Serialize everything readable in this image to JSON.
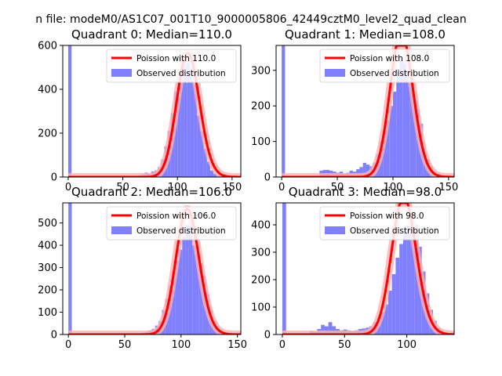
{
  "suptitle": "n file: modeM0/AS1C07_001T10_9000005806_42449cztM0_level2_quad_clean",
  "colors": {
    "hist": "#8080ff",
    "fit": "#ff0000",
    "fitHalo": "#ffb0b0",
    "axis": "#000000"
  },
  "chart_data": [
    {
      "type": "bar",
      "title": "Quadrant 0: Median=110.0",
      "median": 110.0,
      "legend": {
        "placement": "top-right",
        "fit_label": "Poission with 110.0",
        "hist_label": "Observed distribution"
      },
      "xlim": [
        -5,
        158
      ],
      "ylim": [
        0,
        600
      ],
      "xticks": [
        0,
        50,
        100,
        150
      ],
      "yticks": [
        0,
        200,
        400,
        600
      ],
      "bin_width": 3,
      "bins": [
        [
          0,
          600
        ],
        [
          61,
          4
        ],
        [
          64,
          8
        ],
        [
          67,
          12
        ],
        [
          70,
          20
        ],
        [
          73,
          15
        ],
        [
          76,
          25
        ],
        [
          79,
          30
        ],
        [
          82,
          45
        ],
        [
          85,
          80
        ],
        [
          88,
          140
        ],
        [
          91,
          210
        ],
        [
          94,
          290
        ],
        [
          97,
          390
        ],
        [
          100,
          470
        ],
        [
          103,
          500
        ],
        [
          106,
          560
        ],
        [
          109,
          520
        ],
        [
          112,
          470
        ],
        [
          115,
          420
        ],
        [
          118,
          280
        ],
        [
          121,
          210
        ],
        [
          124,
          130
        ],
        [
          127,
          70
        ],
        [
          130,
          30
        ],
        [
          133,
          15
        ],
        [
          136,
          8
        ],
        [
          139,
          5
        ]
      ]
    },
    {
      "type": "bar",
      "title": "Quadrant 1: Median=108.0",
      "median": 108.0,
      "legend": {
        "placement": "top-right",
        "fit_label": "Poission with 108.0",
        "hist_label": "Observed distribution"
      },
      "xlim": [
        -5,
        155
      ],
      "ylim": [
        0,
        370
      ],
      "xticks": [
        0,
        50,
        100,
        150
      ],
      "yticks": [
        0,
        100,
        200,
        300
      ],
      "bin_width": 3,
      "bins": [
        [
          0,
          370
        ],
        [
          34,
          18
        ],
        [
          37,
          20
        ],
        [
          40,
          20
        ],
        [
          43,
          18
        ],
        [
          46,
          15
        ],
        [
          49,
          12
        ],
        [
          52,
          15
        ],
        [
          55,
          10
        ],
        [
          58,
          12
        ],
        [
          61,
          18
        ],
        [
          64,
          15
        ],
        [
          67,
          22
        ],
        [
          70,
          28
        ],
        [
          73,
          40
        ],
        [
          76,
          35
        ],
        [
          79,
          30
        ],
        [
          82,
          40
        ],
        [
          85,
          65
        ],
        [
          88,
          100
        ],
        [
          91,
          130
        ],
        [
          94,
          160
        ],
        [
          97,
          200
        ],
        [
          100,
          240
        ],
        [
          103,
          300
        ],
        [
          106,
          330
        ],
        [
          109,
          320
        ],
        [
          112,
          300
        ],
        [
          115,
          270
        ],
        [
          118,
          220
        ],
        [
          121,
          190
        ],
        [
          124,
          150
        ],
        [
          127,
          70
        ],
        [
          130,
          50
        ],
        [
          133,
          30
        ],
        [
          136,
          15
        ],
        [
          139,
          8
        ]
      ]
    },
    {
      "type": "bar",
      "title": "Quadrant 2: Median=106.0",
      "median": 106.0,
      "legend": {
        "placement": "top-right",
        "fit_label": "Poission with 106.0",
        "hist_label": "Observed distribution"
      },
      "xlim": [
        -5,
        153
      ],
      "ylim": [
        0,
        590
      ],
      "xticks": [
        0,
        50,
        100,
        150
      ],
      "yticks": [
        0,
        100,
        200,
        300,
        400,
        500
      ],
      "bin_width": 3,
      "bins": [
        [
          0,
          590
        ],
        [
          62,
          4
        ],
        [
          65,
          8
        ],
        [
          68,
          12
        ],
        [
          71,
          18
        ],
        [
          74,
          25
        ],
        [
          77,
          40
        ],
        [
          80,
          60
        ],
        [
          83,
          110
        ],
        [
          86,
          160
        ],
        [
          89,
          220
        ],
        [
          92,
          280
        ],
        [
          95,
          330
        ],
        [
          98,
          380
        ],
        [
          101,
          440
        ],
        [
          104,
          490
        ],
        [
          107,
          520
        ],
        [
          110,
          400
        ],
        [
          113,
          360
        ],
        [
          116,
          320
        ],
        [
          119,
          260
        ],
        [
          122,
          180
        ],
        [
          125,
          110
        ],
        [
          128,
          60
        ],
        [
          131,
          30
        ],
        [
          134,
          15
        ],
        [
          137,
          6
        ]
      ]
    },
    {
      "type": "bar",
      "title": "Quadrant 3: Median=98.0",
      "median": 98.0,
      "legend": {
        "placement": "top-right",
        "fit_label": "Poission with 98.0",
        "hist_label": "Observed distribution"
      },
      "xlim": [
        -5,
        138
      ],
      "ylim": [
        0,
        480
      ],
      "xticks": [
        0,
        50,
        100
      ],
      "yticks": [
        0,
        100,
        200,
        300,
        400
      ],
      "bin_width": 3,
      "bins": [
        [
          0,
          480
        ],
        [
          22,
          12
        ],
        [
          25,
          10
        ],
        [
          28,
          20
        ],
        [
          31,
          35
        ],
        [
          34,
          30
        ],
        [
          37,
          45
        ],
        [
          40,
          30
        ],
        [
          43,
          20
        ],
        [
          46,
          15
        ],
        [
          49,
          18
        ],
        [
          52,
          15
        ],
        [
          55,
          12
        ],
        [
          58,
          15
        ],
        [
          61,
          20
        ],
        [
          64,
          22
        ],
        [
          67,
          25
        ],
        [
          70,
          30
        ],
        [
          73,
          45
        ],
        [
          76,
          60
        ],
        [
          79,
          80
        ],
        [
          82,
          110
        ],
        [
          85,
          160
        ],
        [
          88,
          220
        ],
        [
          91,
          280
        ],
        [
          94,
          330
        ],
        [
          97,
          380
        ],
        [
          100,
          400
        ],
        [
          103,
          440
        ],
        [
          106,
          400
        ],
        [
          109,
          320
        ],
        [
          112,
          230
        ],
        [
          115,
          150
        ],
        [
          118,
          90
        ],
        [
          121,
          50
        ],
        [
          124,
          25
        ],
        [
          127,
          12
        ],
        [
          130,
          5
        ]
      ]
    }
  ]
}
